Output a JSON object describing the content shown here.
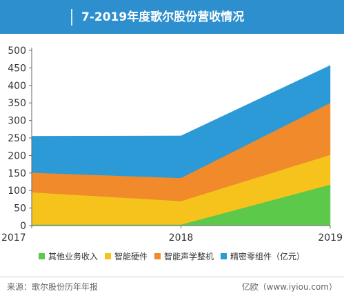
{
  "header": {
    "title": "7-2019年度歌尔股份营收情况"
  },
  "chart_data": {
    "type": "area",
    "stacked": true,
    "title": "",
    "xlabel": "",
    "ylabel": "",
    "x": [
      "2017",
      "2018",
      "2019"
    ],
    "ylim": [
      0,
      500
    ],
    "yticks": [
      0,
      50,
      100,
      150,
      200,
      250,
      300,
      350,
      400,
      450,
      500
    ],
    "grid": false,
    "legend_position": "bottom",
    "legend_suffix": "（亿元）",
    "series": [
      {
        "name": "其他业务收入",
        "color": "#5cc94a",
        "values": [
          3,
          3,
          117
        ]
      },
      {
        "name": "智能硬件",
        "color": "#f6c31c",
        "values": [
          92,
          67,
          85
        ]
      },
      {
        "name": "智能声学整机",
        "color": "#f08a2b",
        "values": [
          56,
          66,
          148
        ]
      },
      {
        "name": "精密零组件",
        "color": "#2b9ad6",
        "values": [
          104,
          120,
          107
        ]
      }
    ]
  },
  "footer": {
    "source": "来源：歌尔股份历年年报",
    "brand": "亿欧（www.iyiou.com）"
  }
}
